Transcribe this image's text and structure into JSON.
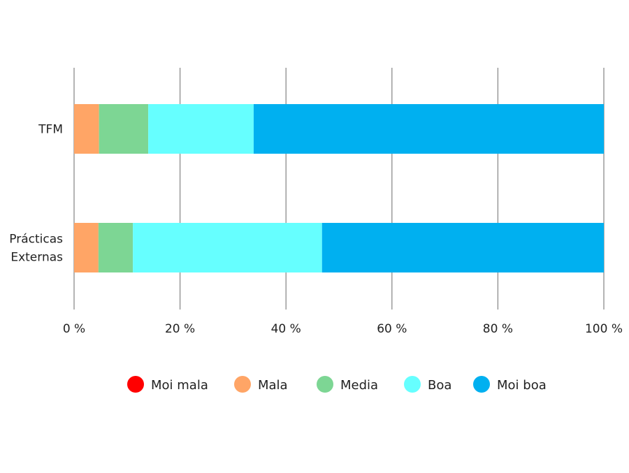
{
  "chart_data": {
    "type": "bar",
    "orientation": "horizontal",
    "stacked": true,
    "percent_axis": true,
    "categories": [
      "TFM",
      "Prácticas Externas"
    ],
    "series": [
      {
        "name": "Moi mala",
        "color": "#ff0000",
        "values": [
          0,
          0
        ]
      },
      {
        "name": "Mala",
        "color": "#ffa566",
        "values": [
          4.7,
          4.6
        ]
      },
      {
        "name": "Media",
        "color": "#7dd694",
        "values": [
          9.3,
          6.5
        ]
      },
      {
        "name": "Boa",
        "color": "#66ffff",
        "values": [
          19.9,
          35.7
        ]
      },
      {
        "name": "Moi boa",
        "color": "#00b0f0",
        "values": [
          66.1,
          53.2
        ]
      }
    ],
    "xlim": [
      0,
      100
    ],
    "xticks": [
      0,
      20,
      40,
      60,
      80,
      100
    ],
    "xtick_labels": [
      "0 %",
      "20 %",
      "40 %",
      "60 %",
      "80 %",
      "100 %"
    ],
    "grid": "vertical",
    "legend": "bottom",
    "title": "",
    "xlabel": "",
    "ylabel": ""
  }
}
